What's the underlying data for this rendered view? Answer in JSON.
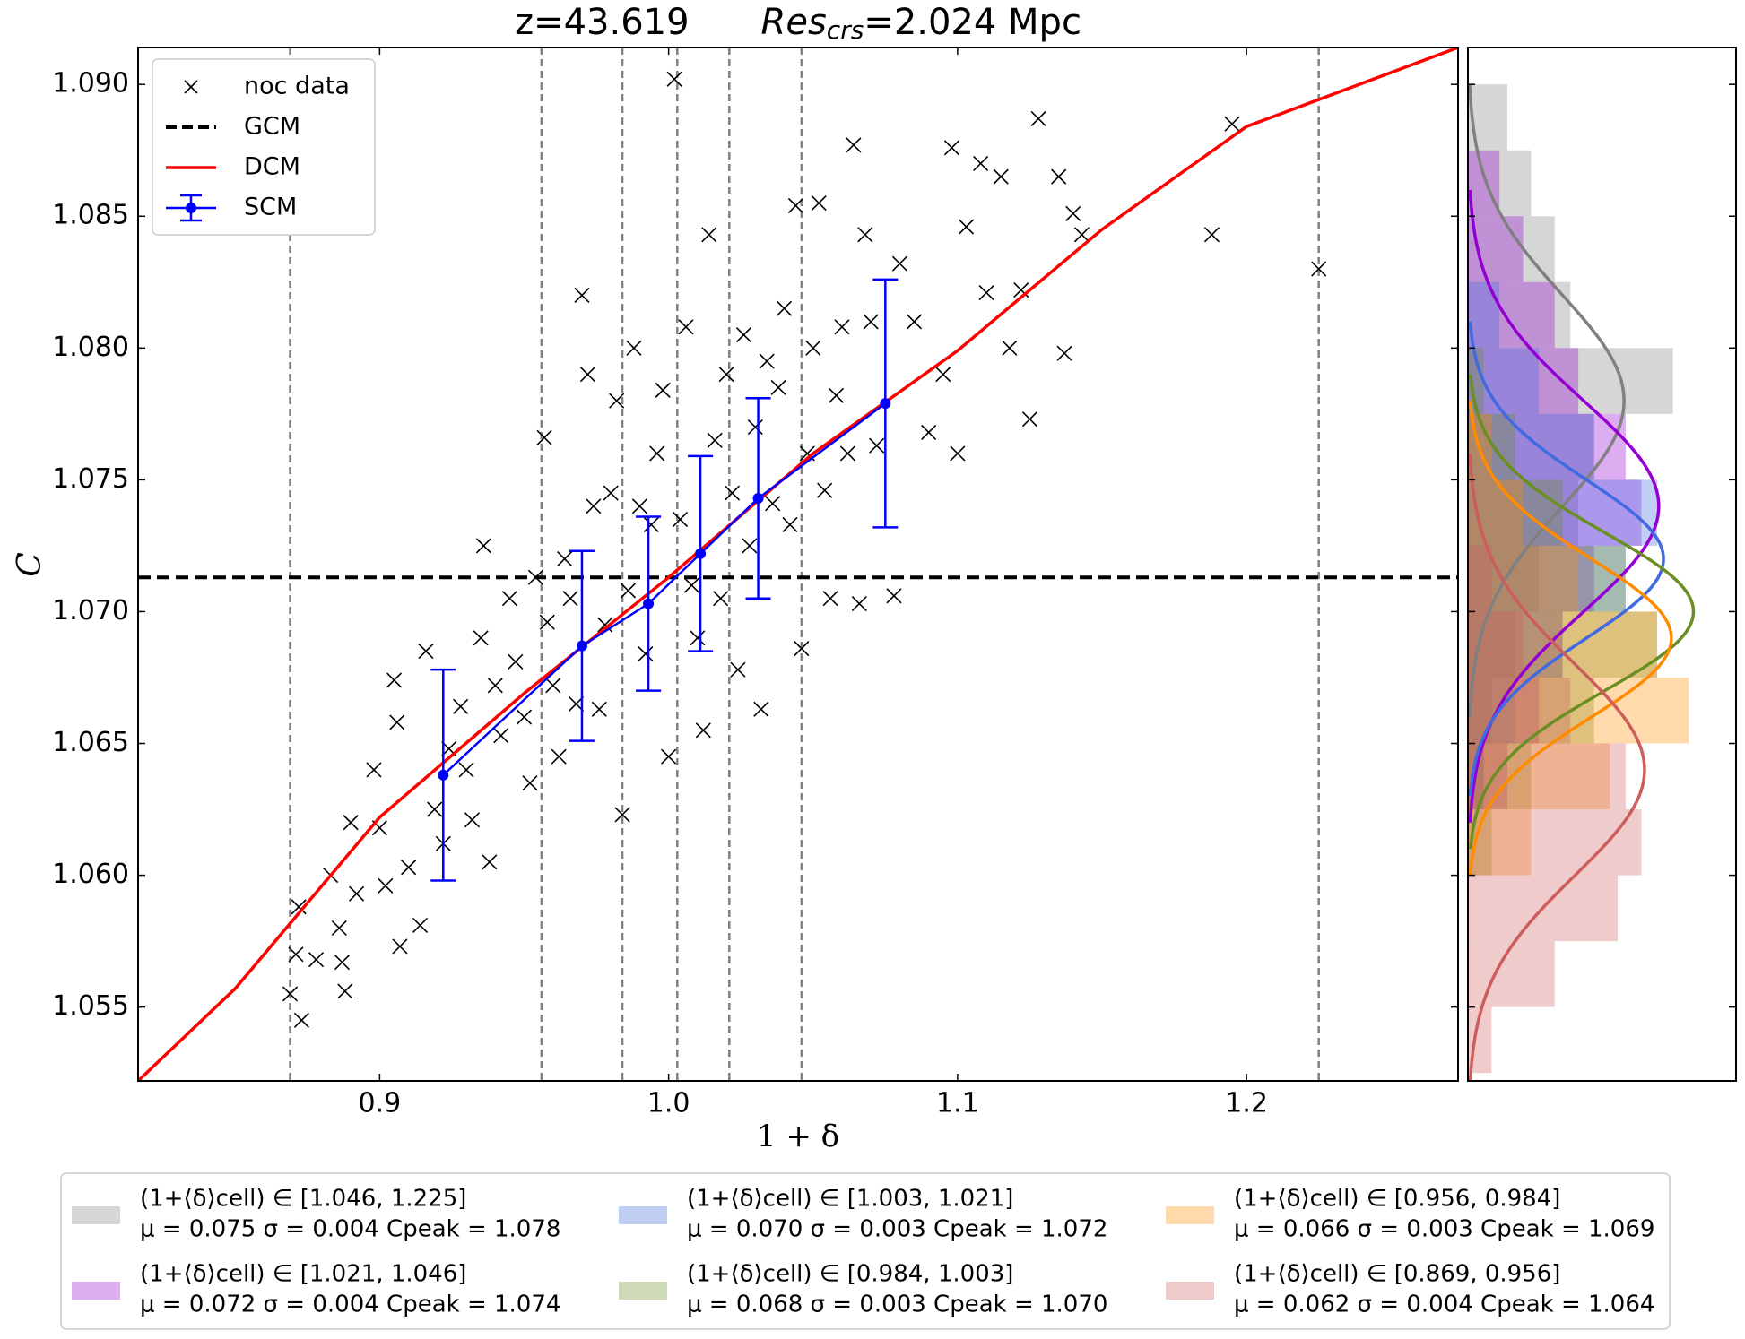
{
  "chart_data": [
    {
      "type": "scatter",
      "title": [
        "z=43.619",
        "Res",
        "crs",
        "=2.024 Mpc"
      ],
      "xlabel": "1 + δ",
      "ylabel": "C",
      "xlim": [
        0.8164,
        1.2732
      ],
      "ylim": [
        1.0522,
        1.0914
      ],
      "xticks": [
        0.9,
        {
          "value": 1.0,
          "label": "1.0"
        },
        1.1,
        1.2
      ],
      "yticks": [
        1.055,
        {
          "value": 1.06,
          "label": "1.060"
        },
        1.065,
        {
          "value": 1.07,
          "label": "1.070"
        },
        1.075,
        {
          "value": 1.08,
          "label": "1.080"
        },
        1.085,
        {
          "value": 1.09,
          "label": "1.090"
        }
      ],
      "legend": "upper left",
      "bin_edges": [
        0.869,
        0.956,
        0.984,
        1.003,
        1.021,
        1.046,
        1.225
      ],
      "series": [
        {
          "name": "noc data",
          "color": "#000000",
          "x": [
            0.869,
            0.871,
            0.873,
            0.872,
            0.878,
            0.883,
            0.886,
            0.887,
            0.888,
            0.89,
            0.892,
            0.898,
            0.9,
            0.902,
            0.905,
            0.906,
            0.907,
            0.91,
            0.914,
            0.916,
            0.919,
            0.922,
            0.924,
            0.928,
            0.93,
            0.932,
            0.935,
            0.936,
            0.938,
            0.94,
            0.942,
            0.945,
            0.947,
            0.95,
            0.952,
            0.954,
            0.957,
            0.958,
            0.96,
            0.962,
            0.964,
            0.966,
            0.968,
            0.97,
            0.972,
            0.974,
            0.976,
            0.978,
            0.98,
            0.982,
            0.984,
            0.986,
            0.988,
            0.99,
            0.992,
            0.994,
            0.996,
            0.998,
            1.0,
            1.002,
            1.004,
            1.006,
            1.008,
            1.01,
            1.012,
            1.014,
            1.016,
            1.018,
            1.02,
            1.022,
            1.024,
            1.026,
            1.028,
            1.03,
            1.032,
            1.034,
            1.036,
            1.038,
            1.04,
            1.042,
            1.044,
            1.046,
            1.048,
            1.05,
            1.052,
            1.054,
            1.056,
            1.058,
            1.06,
            1.062,
            1.064,
            1.066,
            1.068,
            1.07,
            1.072,
            1.078,
            1.08,
            1.085,
            1.09,
            1.095,
            1.098,
            1.1,
            1.103,
            1.108,
            1.11,
            1.115,
            1.118,
            1.122,
            1.125,
            1.128,
            1.135,
            1.137,
            1.14,
            1.143,
            1.188,
            1.195,
            1.225
          ],
          "values": [
            1.0555,
            1.057,
            1.0545,
            1.0588,
            1.0568,
            1.06,
            1.058,
            1.0567,
            1.0556,
            1.062,
            1.0593,
            1.064,
            1.0618,
            1.0596,
            1.0674,
            1.0658,
            1.0573,
            1.0603,
            1.0581,
            1.0685,
            1.0625,
            1.0612,
            1.0648,
            1.0664,
            1.064,
            1.0621,
            1.069,
            1.0725,
            1.0605,
            1.0672,
            1.0653,
            1.0705,
            1.0681,
            1.066,
            1.0635,
            1.0713,
            1.0766,
            1.0696,
            1.0672,
            1.0645,
            1.072,
            1.0705,
            1.0665,
            1.082,
            1.079,
            1.074,
            1.0663,
            1.0695,
            1.0745,
            1.078,
            1.0623,
            1.0708,
            1.08,
            1.074,
            1.0684,
            1.0733,
            1.076,
            1.0784,
            1.0645,
            1.0902,
            1.0735,
            1.0808,
            1.071,
            1.069,
            1.0655,
            1.0843,
            1.0765,
            1.0705,
            1.079,
            1.0745,
            1.0678,
            1.0805,
            1.0725,
            1.077,
            1.0663,
            1.0795,
            1.0741,
            1.0785,
            1.0815,
            1.0733,
            1.0854,
            1.0686,
            1.076,
            1.08,
            1.0855,
            1.0746,
            1.0705,
            1.0782,
            1.0808,
            1.076,
            1.0877,
            1.0703,
            1.0843,
            1.081,
            1.0763,
            1.0706,
            1.0832,
            1.081,
            1.0768,
            1.079,
            1.0876,
            1.076,
            1.0846,
            1.087,
            1.0821,
            1.0865,
            1.08,
            1.0822,
            1.0773,
            1.0887,
            1.0865,
            1.0798,
            1.0851,
            1.0843,
            1.0843,
            1.0885,
            1.083
          ]
        },
        {
          "name": "GCM",
          "color": "#000000",
          "values": [
            1.0713
          ]
        },
        {
          "name": "DCM",
          "color": "#ff0000",
          "x": [
            0.8164,
            0.85,
            0.9,
            0.95,
            1.0,
            1.05,
            1.1,
            1.15,
            1.2,
            1.2732
          ],
          "values": [
            1.0522,
            1.0557,
            1.0622,
            1.0669,
            1.0713,
            1.076,
            1.0799,
            1.0845,
            1.0884,
            1.0914
          ]
        },
        {
          "name": "SCM",
          "color": "#0000ff",
          "x": [
            0.922,
            0.97,
            0.993,
            1.011,
            1.031,
            1.075
          ],
          "values": [
            1.0638,
            1.0687,
            1.0703,
            1.0722,
            1.0743,
            1.0779
          ],
          "err": [
            0.004,
            0.0036,
            0.0033,
            0.0037,
            0.0038,
            0.0047
          ]
        }
      ]
    },
    {
      "type": "histogram",
      "orientation": "horizontal",
      "xlim": [
        0,
        170
      ],
      "ylim": [
        1.0522,
        1.0914
      ],
      "groups": [
        {
          "label": "(1+⟨δ⟩cell) ∈ [1.046, 1.225]",
          "stats": "μ = 0.075  σ = 0.004  Cpeak = 1.078",
          "color": "#808080",
          "bins": [
            1.0625,
            1.065,
            1.0675,
            1.07,
            1.0725,
            1.075,
            1.0775,
            1.08,
            1.0825,
            1.085,
            1.0875,
            1.09
          ],
          "counts": [
            10,
            15,
            30,
            45,
            70,
            80,
            130,
            65,
            55,
            40,
            25
          ],
          "c_peak": 1.078,
          "sigma": 0.004,
          "peak_density": 99
        },
        {
          "label": "(1+⟨δ⟩cell) ∈ [1.021, 1.046]",
          "stats": "μ = 0.072  σ = 0.004  Cpeak = 1.074",
          "color": "#9400d3",
          "bins": [
            1.0625,
            1.065,
            1.0675,
            1.07,
            1.0725,
            1.075,
            1.0775,
            1.08,
            1.0825,
            1.085,
            1.0875
          ],
          "counts": [
            25,
            45,
            60,
            80,
            110,
            100,
            70,
            55,
            35,
            20
          ],
          "c_peak": 1.074,
          "sigma": 0.004,
          "peak_density": 121
        },
        {
          "label": "(1+⟨δ⟩cell) ∈ [1.003, 1.021]",
          "stats": "μ = 0.070  σ = 0.003  Cpeak = 1.072",
          "color": "#4169e1",
          "bins": [
            1.0625,
            1.065,
            1.0675,
            1.07,
            1.0725,
            1.075,
            1.0775,
            1.08,
            1.0825
          ],
          "counts": [
            10,
            30,
            60,
            100,
            120,
            80,
            45,
            20
          ],
          "c_peak": 1.072,
          "sigma": 0.003,
          "peak_density": 124
        },
        {
          "label": "(1+⟨δ⟩cell) ∈ [0.984, 1.003]",
          "stats": "μ = 0.068  σ = 0.003  Cpeak = 1.070",
          "color": "#6b8e23",
          "bins": [
            1.06,
            1.0625,
            1.065,
            1.0675,
            1.07,
            1.0725,
            1.075,
            1.0775,
            1.08
          ],
          "counts": [
            15,
            40,
            80,
            120,
            100,
            60,
            30,
            10
          ],
          "c_peak": 1.07,
          "sigma": 0.003,
          "peak_density": 143
        },
        {
          "label": "(1+⟨δ⟩cell) ∈ [0.956, 0.984]",
          "stats": "μ = 0.066  σ = 0.003  Cpeak = 1.069",
          "color": "#ff8c00",
          "bins": [
            1.06,
            1.0625,
            1.065,
            1.0675,
            1.07,
            1.0725,
            1.075,
            1.0775
          ],
          "counts": [
            40,
            90,
            140,
            120,
            70,
            35,
            15
          ],
          "c_peak": 1.069,
          "sigma": 0.003,
          "peak_density": 129
        },
        {
          "label": "(1+⟨δ⟩cell) ∈ [0.869, 0.956]",
          "stats": "μ = 0.062  σ = 0.004  Cpeak = 1.064",
          "color": "#cd5c5c",
          "bins": [
            1.0525,
            1.055,
            1.0575,
            1.06,
            1.0625,
            1.065,
            1.0675,
            1.07,
            1.0725
          ],
          "counts": [
            15,
            55,
            95,
            110,
            100,
            65,
            35,
            15
          ],
          "c_peak": 1.064,
          "sigma": 0.004,
          "peak_density": 112
        }
      ]
    }
  ]
}
